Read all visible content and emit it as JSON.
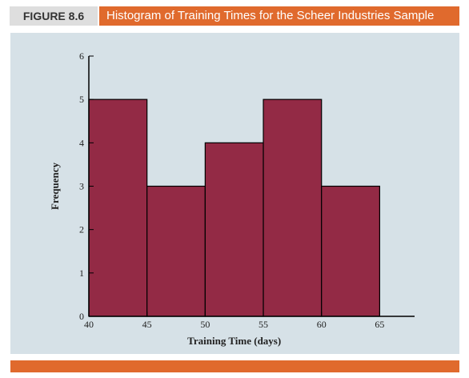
{
  "figure": {
    "number": "FIGURE 8.6",
    "title": "Histogram of Training Times for the Scheer Industries Sample"
  },
  "colors": {
    "accent": "#e06a2d",
    "panel": "#d6e1e7",
    "bar": "#932a45",
    "tag": "#dedede"
  },
  "chart_data": {
    "type": "bar",
    "title": "",
    "xlabel": "Training Time (days)",
    "ylabel": "Frequency",
    "bins": [
      [
        40,
        45
      ],
      [
        45,
        50
      ],
      [
        50,
        55
      ],
      [
        55,
        60
      ],
      [
        60,
        65
      ]
    ],
    "values": [
      5,
      3,
      4,
      5,
      3
    ],
    "xlim": [
      40,
      68
    ],
    "ylim": [
      0,
      6
    ],
    "xticks": [
      40,
      45,
      50,
      55,
      60,
      65
    ],
    "yticks": [
      0,
      1,
      2,
      3,
      4,
      5,
      6
    ],
    "grid": false,
    "legend": "none"
  }
}
